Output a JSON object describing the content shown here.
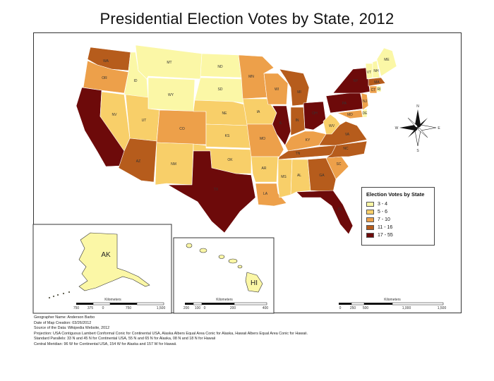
{
  "title": "Presidential Election Votes by State, 2012",
  "colors": {
    "c1": "#fbf7a6",
    "c2": "#f8cf69",
    "c3": "#eda04a",
    "c4": "#b65c1c",
    "c5": "#6d0a0a"
  },
  "legend": {
    "title": "Election Votes by State",
    "items": [
      {
        "label": "3 - 4",
        "color": "#fbf7a6"
      },
      {
        "label": "5 - 6",
        "color": "#f8cf69"
      },
      {
        "label": "7 - 10",
        "color": "#eda04a"
      },
      {
        "label": "11 - 16",
        "color": "#b65c1c"
      },
      {
        "label": "17 - 55",
        "color": "#6d0a0a"
      }
    ]
  },
  "compass": {
    "n": "N",
    "s": "S",
    "e": "E",
    "w": "W"
  },
  "insets": {
    "alaska_label": "AK",
    "hawaii_label": "HI"
  },
  "state_labels": {
    "WA": "WA",
    "OR": "OR",
    "ID": "ID",
    "MT": "MT",
    "WY": "WY",
    "NV": "NV",
    "UT": "UT",
    "CO": "CO",
    "AZ": "AZ",
    "NM": "NM",
    "ND": "ND",
    "SD": "SD",
    "NE": "NE",
    "KS": "KS",
    "OK": "OK",
    "TX": "TX",
    "MN": "MN",
    "IA": "IA",
    "MO": "MO",
    "AR": "AR",
    "LA": "LA",
    "WI": "WI",
    "IL": "IL",
    "MI": "MI",
    "IN": "IN",
    "OH": "OH",
    "KY": "KY",
    "TN": "TN",
    "MS": "MS",
    "AL": "AL",
    "GA": "GA",
    "FL": "FL",
    "SC": "SC",
    "NC": "NC",
    "VA": "VA",
    "WV": "WV",
    "PA": "PA",
    "NY": "NY",
    "VT": "VT",
    "NH": "NH",
    "ME": "ME",
    "MA": "MA",
    "CT": "CT",
    "RI": "RI",
    "NJ": "NJ",
    "DE": "DE",
    "MD": "MD"
  },
  "scalebars": {
    "alaska": {
      "title": "Kilometers",
      "ticks": [
        "750",
        "375",
        "0",
        "750",
        "1,500"
      ]
    },
    "hawaii": {
      "title": "Kilometers",
      "ticks": [
        "200",
        "100",
        "0",
        "200",
        "400"
      ]
    },
    "conus": {
      "title": "Kilometers",
      "ticks": [
        "0",
        "250",
        "500",
        "1,000",
        "1,500"
      ]
    }
  },
  "metadata": [
    "Geographer Name: Anderson Barbo",
    "Date of Map Creation: 03/26/2012",
    "Source of the Data: Wikipedia Website, 2012",
    "Projection: USA Contiguous Lambert Conformal Conic for Continental USA, Alaska Albers Equal Area Conic for Alaska, Hawaii Albers Equal Area Conic for Hawaii.",
    "Standard Parallels: 33 N and 45 N for Continental USA, 55 N and 65 N for Alaska, 08 N and 18 N for Hawaii",
    "Central Meridian: 96 W for Continental USA, 154 W for Alaska and 157 W for Hawaii."
  ]
}
